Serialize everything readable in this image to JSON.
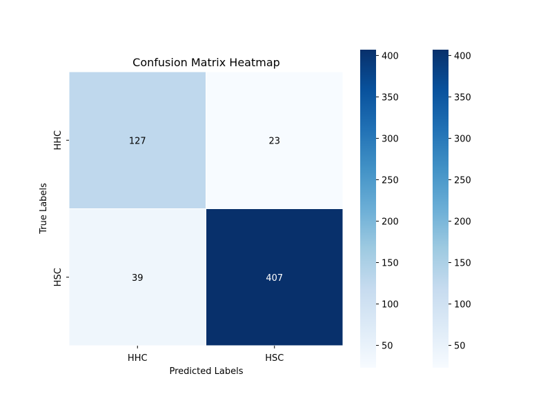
{
  "chart_data": {
    "type": "heatmap",
    "title": "Confusion Matrix Heatmap",
    "xlabel": "Predicted Labels",
    "ylabel": "True Labels",
    "x_categories": [
      "HHC",
      "HSC"
    ],
    "y_categories": [
      "HHC",
      "HSC"
    ],
    "values": [
      [
        127,
        23
      ],
      [
        39,
        407
      ]
    ],
    "colormap": "Blues",
    "colormap_stops": [
      "#f7fbff",
      "#deebf7",
      "#c6dbef",
      "#9ecae1",
      "#6baed6",
      "#4292c6",
      "#2171b5",
      "#08519c",
      "#08306b"
    ],
    "vmin": 23,
    "vmax": 407,
    "colorbar_ticks": [
      50,
      100,
      150,
      200,
      250,
      300,
      350,
      400
    ],
    "colorbar_count": 2,
    "annotation_colors": {
      "light_cell": "#000000",
      "dark_cell": "#ffffff"
    }
  }
}
